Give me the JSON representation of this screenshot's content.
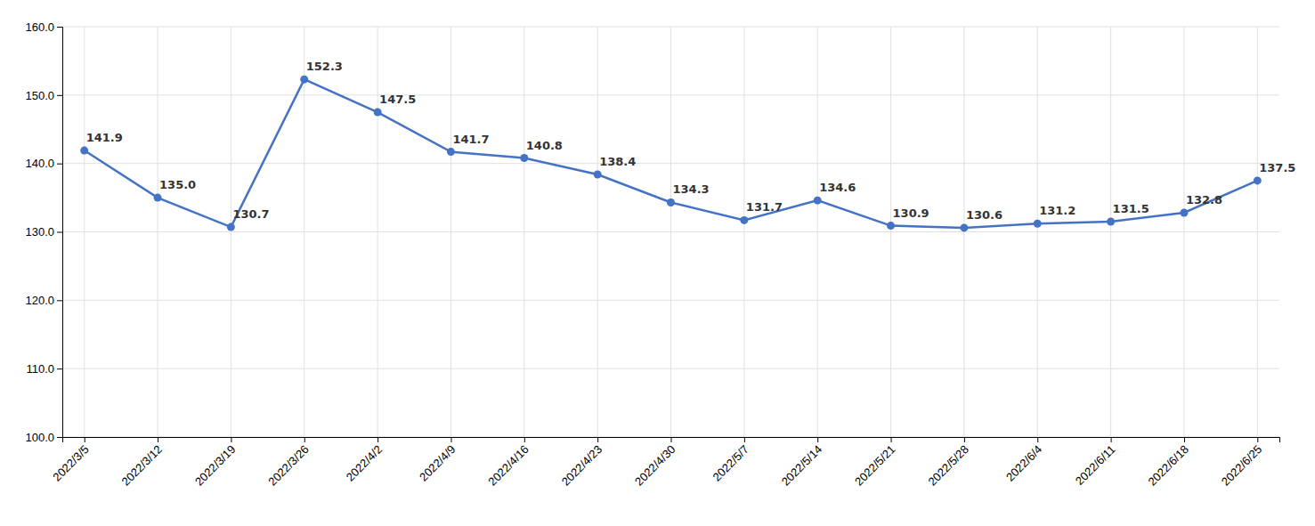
{
  "chart_data": {
    "type": "line",
    "categories": [
      "2022/3/5",
      "2022/3/12",
      "2022/3/19",
      "2022/3/26",
      "2022/4/2",
      "2022/4/9",
      "2022/4/16",
      "2022/4/23",
      "2022/4/30",
      "2022/5/7",
      "2022/5/14",
      "2022/5/21",
      "2022/5/28",
      "2022/6/4",
      "2022/6/11",
      "2022/6/18",
      "2022/6/25"
    ],
    "values": [
      141.9,
      135.0,
      130.7,
      152.3,
      147.5,
      141.7,
      140.8,
      138.4,
      134.3,
      131.7,
      134.6,
      130.9,
      130.6,
      131.2,
      131.5,
      132.8,
      137.5
    ],
    "value_labels": [
      "141.9",
      "135.0",
      "130.7",
      "152.3",
      "147.5",
      "141.7",
      "140.8",
      "138.4",
      "134.3",
      "131.7",
      "134.6",
      "130.9",
      "130.6",
      "131.2",
      "131.5",
      "132.8",
      "137.5"
    ],
    "color": "#4472C4",
    "marker": "circle",
    "ylim": [
      100.0,
      160.0
    ],
    "yticks": [
      {
        "value": 100,
        "label": "100.0"
      },
      {
        "value": 110,
        "label": "110.0"
      },
      {
        "value": 120,
        "label": "120.0"
      },
      {
        "value": 130,
        "label": "130.0"
      },
      {
        "value": 140,
        "label": "140.0"
      },
      {
        "value": 150,
        "label": "150.0"
      },
      {
        "value": 160,
        "label": "160.0"
      }
    ],
    "grid": true,
    "data_labels": true
  }
}
